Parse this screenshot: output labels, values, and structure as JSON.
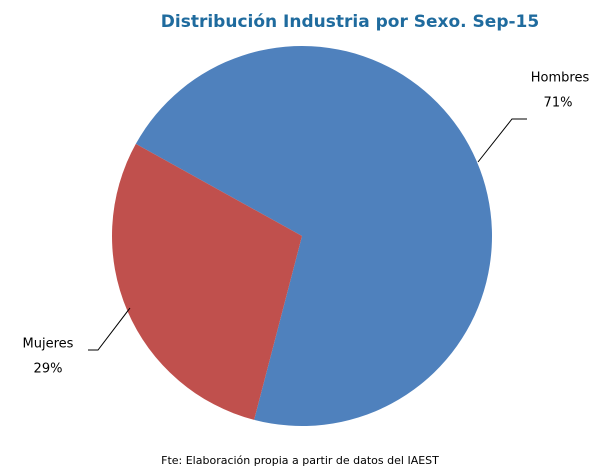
{
  "chart_data": {
    "type": "pie",
    "title": "Distribución Industria por Sexo. Sep-15",
    "categories": [
      "Hombres",
      "Mujeres"
    ],
    "values": [
      71,
      29
    ],
    "value_labels": [
      "71%",
      "29%"
    ],
    "colors": [
      "#4f81bd",
      "#c0504d"
    ],
    "source": "Fte: Elaboración propia a partir de datos del IAEST"
  }
}
